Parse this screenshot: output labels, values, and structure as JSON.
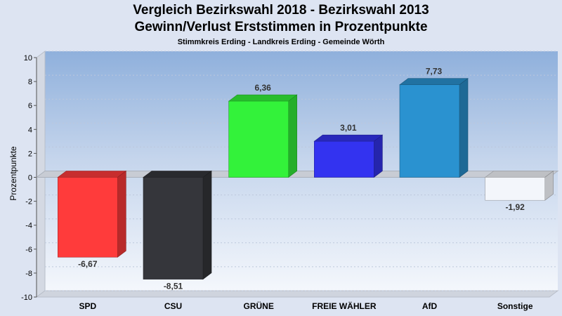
{
  "chart_data": {
    "type": "bar",
    "title": "Vergleich Bezirkswahl 2018 - Bezirkswahl 2013",
    "subtitle": "Gewinn/Verlust Erststimmen in Prozentpunkte",
    "subtitle2": "Stimmkreis Erding - Landkreis Erding - Gemeinde Wörth",
    "ylabel": "Prozentpunkte",
    "xlabel": "",
    "ylim": [
      -10,
      10
    ],
    "yticks": [
      10,
      8,
      6,
      4,
      2,
      0,
      -2,
      -4,
      -6,
      -8,
      -10
    ],
    "grid": true,
    "categories": [
      "SPD",
      "CSU",
      "GRÜNE",
      "FREIE WÄHLER",
      "AfD",
      "Sonstige"
    ],
    "values": [
      -6.67,
      -8.51,
      6.36,
      3.01,
      7.73,
      -1.92
    ],
    "value_labels": [
      "-6,67",
      "-8,51",
      "6,36",
      "3,01",
      "7,73",
      "-1,92"
    ],
    "colors": [
      "#ff3b3b",
      "#35363b",
      "#33f23a",
      "#3333f0",
      "#2a92d0",
      "#f3f6fb"
    ]
  }
}
